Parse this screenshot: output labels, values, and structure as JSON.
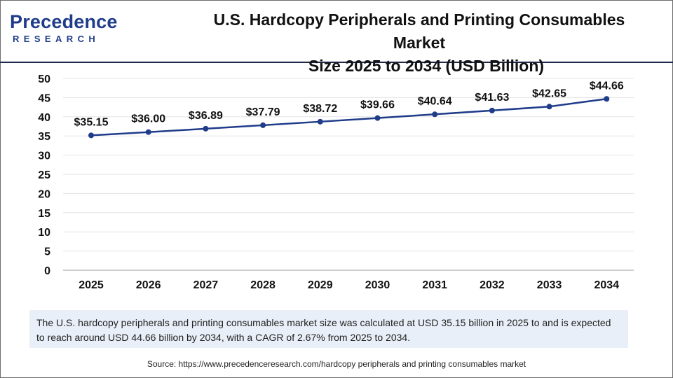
{
  "brand": {
    "name": "Precedence",
    "sub": "RESEARCH",
    "color": "#1f3c8a"
  },
  "title_line1": "U.S. Hardcopy Peripherals and Printing Consumables Market",
  "title_line2": "Size 2025 to 2034 (USD Billion)",
  "chart_data": {
    "type": "line",
    "title": "U.S. Hardcopy Peripherals and Printing Consumables Market Size 2025 to 2034 (USD Billion)",
    "xlabel": "",
    "ylabel": "",
    "x": [
      "2025",
      "2026",
      "2027",
      "2028",
      "2029",
      "2030",
      "2031",
      "2032",
      "2033",
      "2034"
    ],
    "y_ticks": [
      "0",
      "5",
      "10",
      "15",
      "20",
      "25",
      "30",
      "35",
      "40",
      "45",
      "50"
    ],
    "ylim": [
      0,
      50
    ],
    "grid": true,
    "line_color": "#1f3c8a",
    "series": [
      {
        "name": "Market Size",
        "values": [
          35.15,
          36.0,
          36.89,
          37.79,
          38.72,
          39.66,
          40.64,
          41.63,
          42.65,
          44.66
        ],
        "labels": [
          "$35.15",
          "$36.00",
          "$36.89",
          "$37.79",
          "$38.72",
          "$39.66",
          "$40.64",
          "$41.63",
          "$42.65",
          "$44.66"
        ]
      }
    ]
  },
  "note": "The U.S. hardcopy peripherals and printing consumables market size was calculated at USD 35.15 billion in 2025 to and is expected to reach around USD 44.66 billion by 2034, with a CAGR of 2.67% from 2025 to 2034.",
  "source": "Source: https://www.precedenceresearch.com/hardcopy peripherals and printing consumables market"
}
